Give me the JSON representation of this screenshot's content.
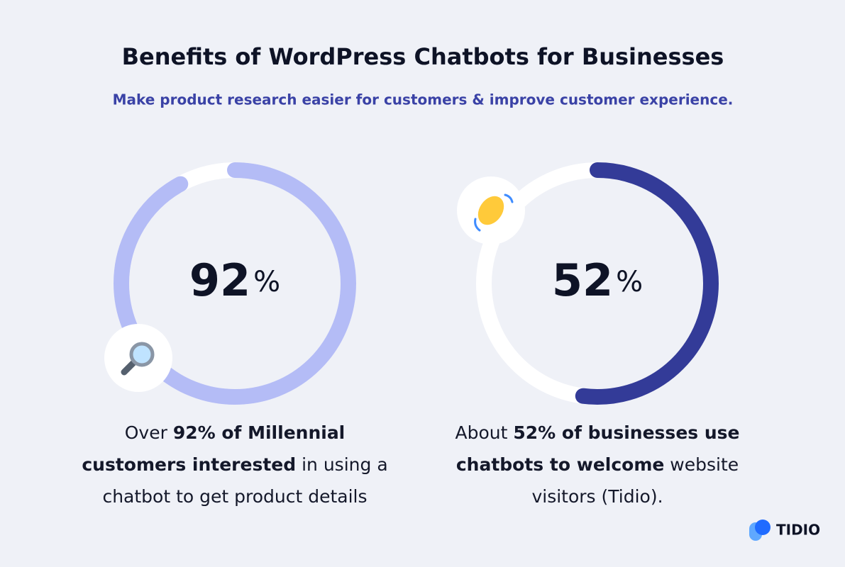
{
  "title": "Benefits of WordPress Chatbots for Businesses",
  "subtitle": "Make product research easier for customers & improve customer experience.",
  "stats": [
    {
      "value": 92,
      "unit": "%",
      "color": "#b4bcf6",
      "icon": "magnifier",
      "caption": [
        {
          "text": "Over ",
          "bold": false
        },
        {
          "text": "92% of Millennial customers interested",
          "bold": true
        },
        {
          "text": " in using a chatbot to get product details",
          "bold": false
        }
      ]
    },
    {
      "value": 52,
      "unit": "%",
      "color": "#333b98",
      "icon": "wave",
      "caption": [
        {
          "text": "About ",
          "bold": false
        },
        {
          "text": "52% of businesses use chatbots to welcome",
          "bold": true
        },
        {
          "text": " website visitors (Tidio).",
          "bold": false
        }
      ]
    }
  ],
  "brand": "TIDIO"
}
